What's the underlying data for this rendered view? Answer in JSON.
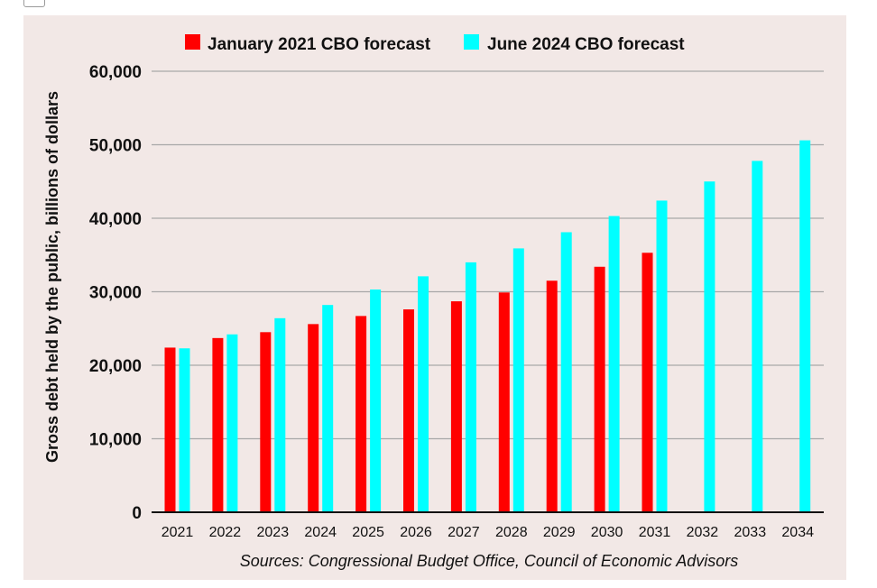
{
  "chart_data": {
    "type": "bar",
    "categories": [
      "2021",
      "2022",
      "2023",
      "2024",
      "2025",
      "2026",
      "2027",
      "2028",
      "2029",
      "2030",
      "2031",
      "2032",
      "2033",
      "2034"
    ],
    "series": [
      {
        "name": "January 2021 CBO forecast",
        "color": "#ff0000",
        "values": [
          22400,
          23700,
          24500,
          25600,
          26700,
          27600,
          28700,
          29900,
          31500,
          33400,
          35300,
          null,
          null,
          null
        ]
      },
      {
        "name": "June 2024 CBO forecast",
        "color": "#00ffff",
        "values": [
          22300,
          24200,
          26400,
          28200,
          30300,
          32100,
          34000,
          35900,
          38100,
          40300,
          42400,
          45000,
          47800,
          50600
        ]
      }
    ],
    "ylabel": "Gross debt held by the public, billions of dollars",
    "ylim": [
      0,
      60000
    ],
    "yticks": [
      "0",
      "10,000",
      "20,000",
      "30,000",
      "40,000",
      "50,000",
      "60,000"
    ],
    "grid": true,
    "legend": "top",
    "source": "Sources: Congressional Budget Office, Council of Economic Advisors"
  }
}
